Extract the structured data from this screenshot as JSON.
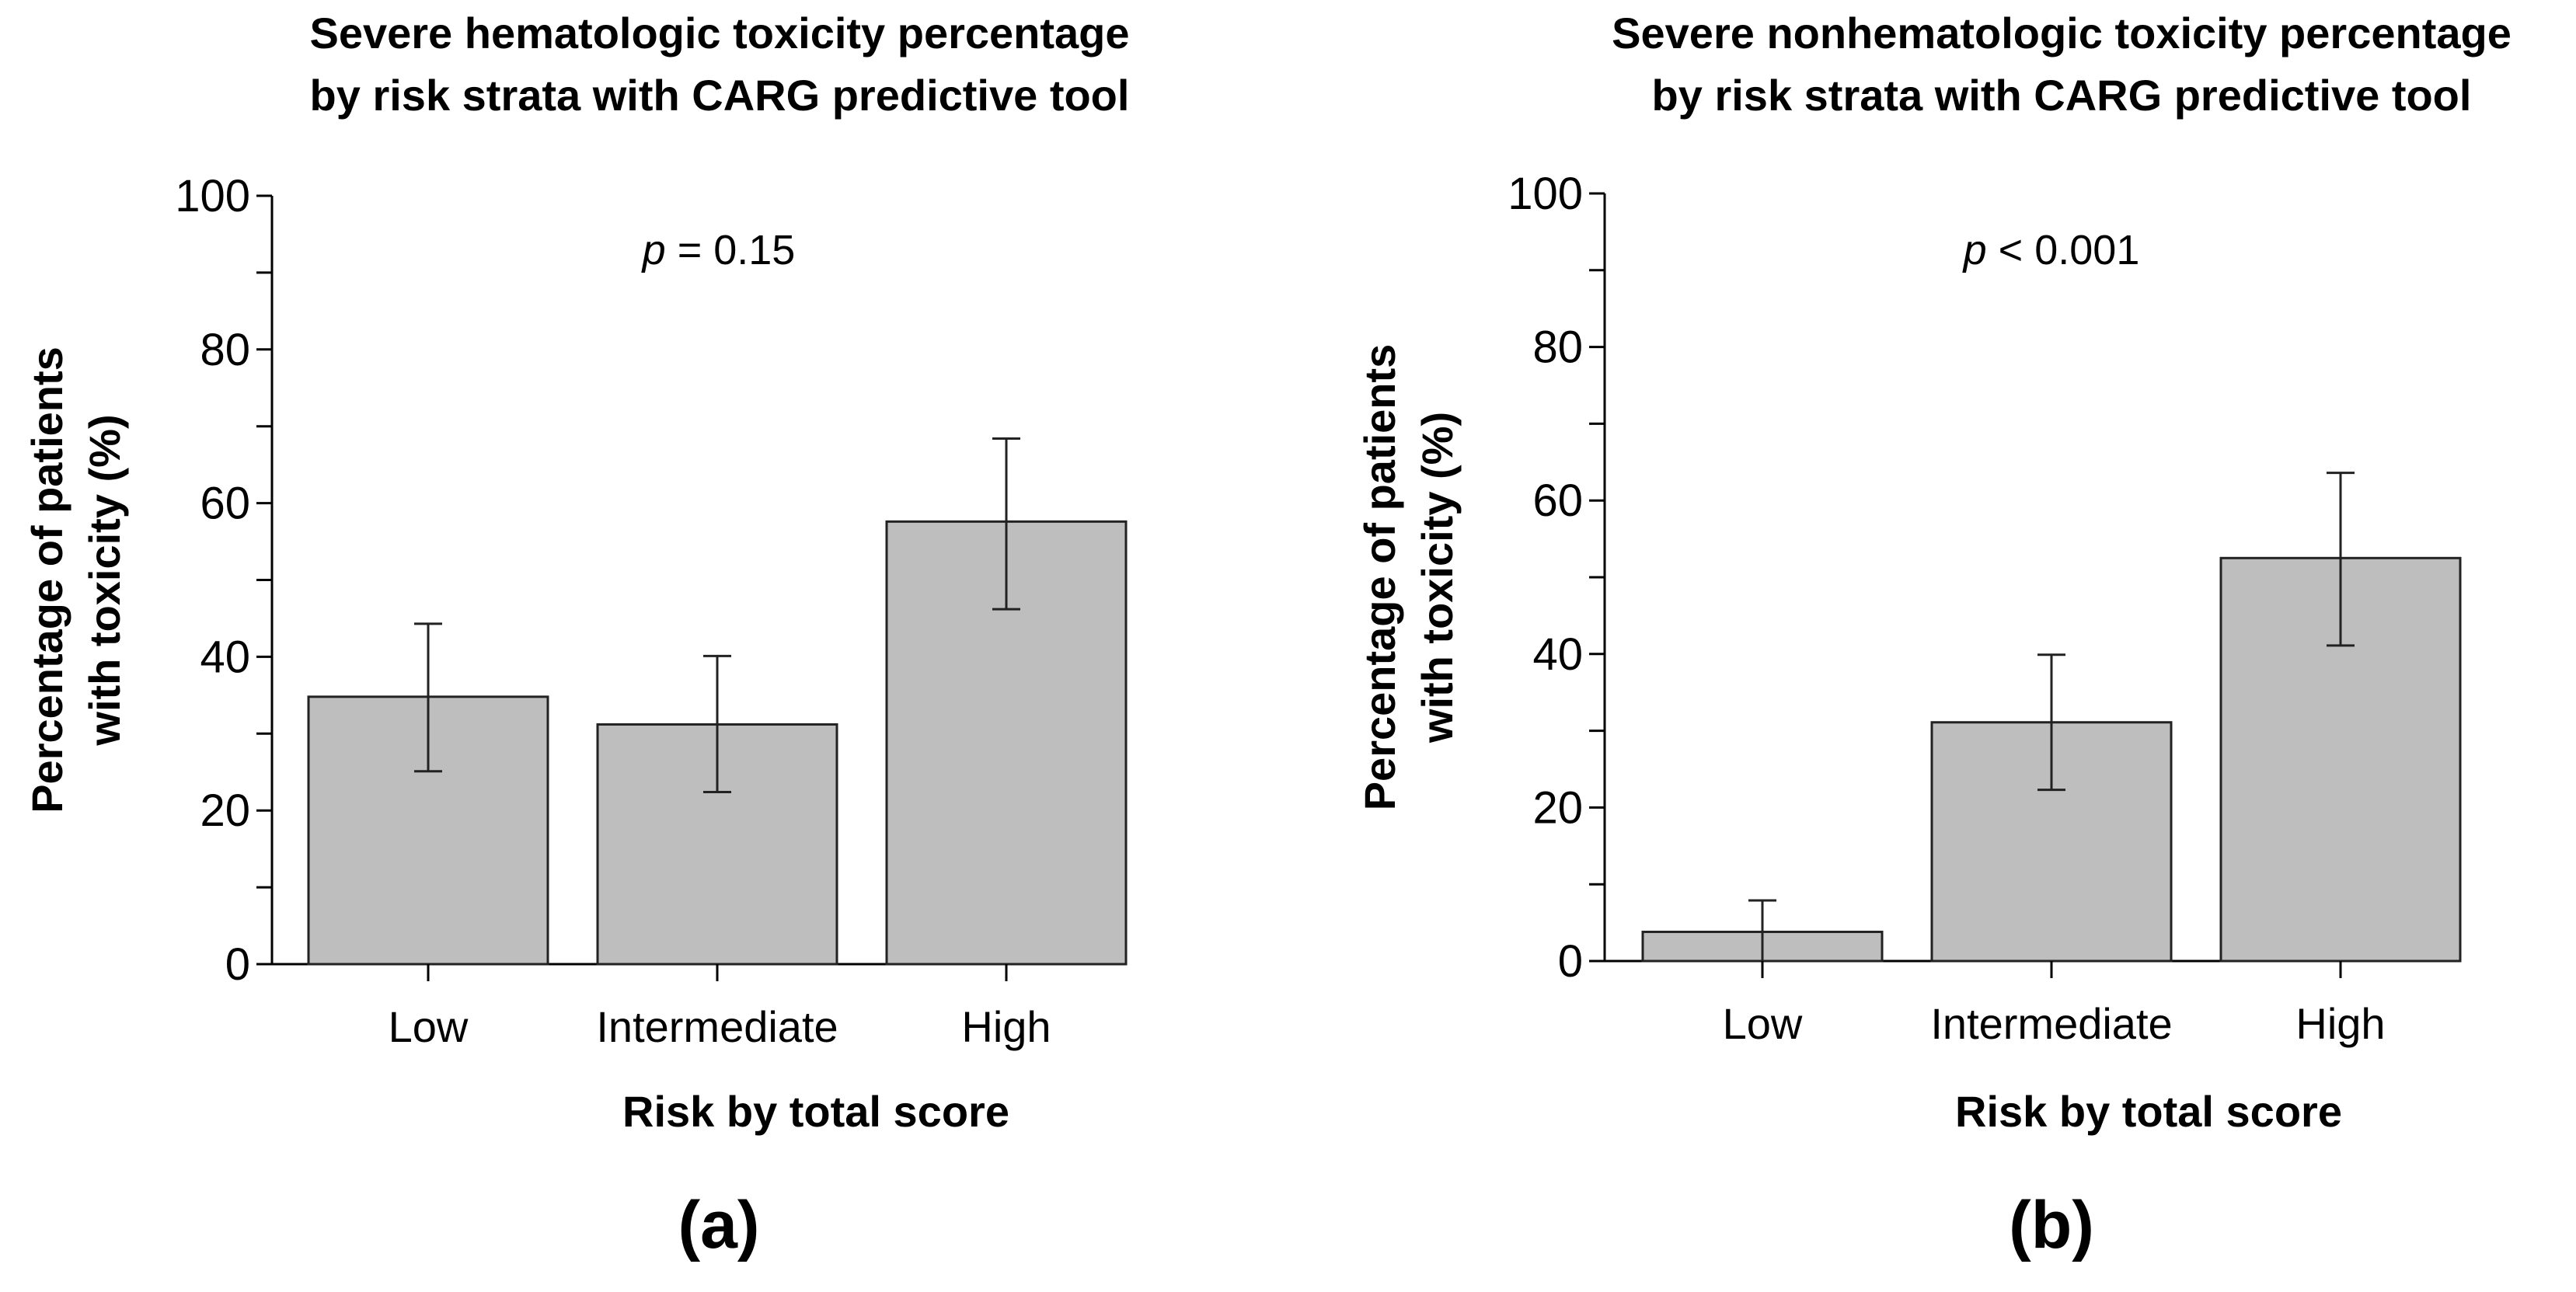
{
  "chart_data": [
    {
      "type": "bar",
      "title_lines": [
        "Severe hematologic toxicity percentage",
        "by risk strata with CARG predictive tool"
      ],
      "xlabel": "Risk by total score",
      "ylabel_lines": [
        "Percentage of patients",
        "with toxicity (%)"
      ],
      "categories": [
        "Low",
        "Intermediate",
        "High"
      ],
      "values": [
        34.8,
        31.2,
        57.6
      ],
      "error_upper": [
        44.3,
        40.1,
        68.4
      ],
      "error_lower": [
        25.1,
        22.4,
        46.2
      ],
      "ylim": [
        0,
        100
      ],
      "yticks": [
        0,
        20,
        40,
        60,
        80,
        100
      ],
      "annotation_p": "p",
      "annotation_rest": " = 0.15",
      "panel_label": "(a)",
      "bar_color": "#bebebe"
    },
    {
      "type": "bar",
      "title_lines": [
        "Severe nonhematologic toxicity percentage",
        "by risk strata with CARG predictive tool"
      ],
      "xlabel": "Risk by total score",
      "ylabel_lines": [
        "Percentage of patients",
        "with toxicity (%)"
      ],
      "categories": [
        "Low",
        "Intermediate",
        "High"
      ],
      "values": [
        3.8,
        31.1,
        52.5
      ],
      "error_upper": [
        7.9,
        39.9,
        63.6
      ],
      "error_lower": [
        0,
        22.3,
        41.1
      ],
      "ylim": [
        0,
        100
      ],
      "yticks": [
        0,
        20,
        40,
        60,
        80,
        100
      ],
      "annotation_p": "p",
      "annotation_rest": " < 0.001",
      "panel_label": "(b)",
      "bar_color": "#bebebe"
    }
  ]
}
